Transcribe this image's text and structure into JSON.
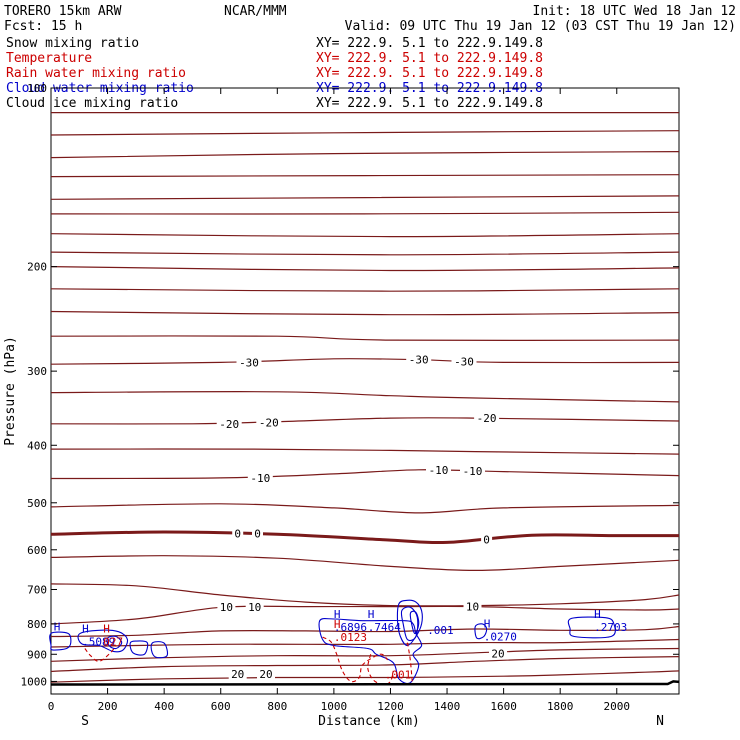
{
  "header": {
    "model": "TORERO  15km ARW",
    "org": "NCAR/MMM",
    "init": "Init: 18 UTC Wed 18 Jan 12",
    "fcst": "Fcst:   15 h",
    "valid": "Valid: 09 UTC Thu 19 Jan 12 (03 CST Thu 19 Jan 12)"
  },
  "fields": [
    {
      "name": "Snow mixing ratio",
      "xy": "XY= 222.9.  5.1 to 222.9.149.8",
      "color": "#000000"
    },
    {
      "name": "Temperature",
      "xy": "XY= 222.9.  5.1 to 222.9.149.8",
      "color": "#cc0000"
    },
    {
      "name": "Rain water mixing ratio",
      "xy": "XY= 222.9.  5.1 to 222.9.149.8",
      "color": "#cc0000"
    },
    {
      "name": "Cloud water mixing ratio",
      "xy": "XY= 222.9.  5.1 to 222.9.149.8",
      "color": "#0000cc"
    },
    {
      "name": "Cloud ice mixing ratio",
      "xy": "XY= 222.9.  5.1 to 222.9.149.8",
      "color": "#000000"
    }
  ],
  "chart_data": {
    "type": "line",
    "ylabel": "Pressure (hPa)",
    "xlabel": "Distance (km)",
    "xlim": [
      0,
      2220
    ],
    "ylim": [
      1050,
      100
    ],
    "ylog": true,
    "x_ticks": [
      0,
      200,
      400,
      600,
      800,
      1000,
      1200,
      1400,
      1600,
      1800,
      2000
    ],
    "y_ticks": [
      100,
      200,
      300,
      400,
      500,
      600,
      700,
      800,
      900,
      1000
    ],
    "end_labels": {
      "left": "S",
      "right": "N"
    },
    "colors": {
      "temperature": "#7a1a1a",
      "rain": "#cc0000",
      "cloud": "#0000cc",
      "ground": "#000000"
    },
    "isotherms": [
      {
        "level": -60,
        "points": [
          [
            0,
            110
          ],
          [
            2220,
            110
          ]
        ]
      },
      {
        "level": -58,
        "points": [
          [
            0,
            120
          ],
          [
            1000,
            119
          ],
          [
            2220,
            118
          ]
        ]
      },
      {
        "level": -56,
        "points": [
          [
            0,
            131
          ],
          [
            1000,
            129
          ],
          [
            2220,
            128
          ]
        ]
      },
      {
        "level": -54,
        "points": [
          [
            0,
            141
          ],
          [
            2220,
            140
          ]
        ]
      },
      {
        "level": -52,
        "points": [
          [
            0,
            154
          ],
          [
            2220,
            152
          ]
        ]
      },
      {
        "level": -50,
        "points": [
          [
            0,
            163
          ],
          [
            1100,
            163
          ],
          [
            2220,
            162
          ]
        ]
      },
      {
        "level": -48,
        "points": [
          [
            0,
            176
          ],
          [
            1200,
            178
          ],
          [
            2220,
            176
          ]
        ]
      },
      {
        "level": -46,
        "points": [
          [
            0,
            189
          ],
          [
            1200,
            191
          ],
          [
            2220,
            189
          ]
        ]
      },
      {
        "level": -44,
        "points": [
          [
            0,
            200
          ],
          [
            1200,
            203
          ],
          [
            2220,
            201
          ]
        ]
      },
      {
        "level": -42,
        "points": [
          [
            0,
            218
          ],
          [
            1200,
            220
          ],
          [
            2220,
            218
          ]
        ]
      },
      {
        "level": -40,
        "points": [
          [
            0,
            238
          ],
          [
            1200,
            241
          ],
          [
            2220,
            239
          ]
        ]
      },
      {
        "level": -36,
        "points": [
          [
            0,
            262
          ],
          [
            800,
            262
          ],
          [
            1200,
            266
          ],
          [
            2220,
            266
          ]
        ]
      },
      {
        "level": -30,
        "points": [
          [
            0,
            292
          ],
          [
            600,
            290
          ],
          [
            1000,
            286
          ],
          [
            1300,
            287
          ],
          [
            1600,
            290
          ],
          [
            2220,
            290
          ]
        ]
      },
      {
        "level": -26,
        "points": [
          [
            0,
            326
          ],
          [
            800,
            325
          ],
          [
            1200,
            330
          ],
          [
            1500,
            333
          ],
          [
            2220,
            338
          ]
        ]
      },
      {
        "level": -20,
        "points": [
          [
            0,
            368
          ],
          [
            500,
            368
          ],
          [
            800,
            365
          ],
          [
            1200,
            360
          ],
          [
            1500,
            360
          ],
          [
            2220,
            364
          ]
        ]
      },
      {
        "level": -16,
        "points": [
          [
            0,
            406
          ],
          [
            700,
            406
          ],
          [
            1200,
            408
          ],
          [
            1500,
            410
          ],
          [
            2220,
            414
          ]
        ]
      },
      {
        "level": -10,
        "points": [
          [
            0,
            455
          ],
          [
            600,
            454
          ],
          [
            1000,
            447
          ],
          [
            1300,
            440
          ],
          [
            1600,
            443
          ],
          [
            2220,
            450
          ]
        ]
      },
      {
        "level": -6,
        "points": [
          [
            0,
            508
          ],
          [
            600,
            502
          ],
          [
            1000,
            510
          ],
          [
            1300,
            520
          ],
          [
            1600,
            510
          ],
          [
            2220,
            505
          ]
        ]
      },
      {
        "level": 0,
        "points": [
          [
            0,
            565
          ],
          [
            400,
            560
          ],
          [
            800,
            565
          ],
          [
            1200,
            578
          ],
          [
            1400,
            583
          ],
          [
            1700,
            567
          ],
          [
            2000,
            568
          ],
          [
            2220,
            568
          ]
        ]
      },
      {
        "level": 4,
        "points": [
          [
            0,
            618
          ],
          [
            400,
            614
          ],
          [
            800,
            620
          ],
          [
            1200,
            640
          ],
          [
            1500,
            650
          ],
          [
            1800,
            640
          ],
          [
            2220,
            625
          ]
        ]
      },
      {
        "level": 8,
        "points": [
          [
            0,
            685
          ],
          [
            300,
            690
          ],
          [
            600,
            715
          ],
          [
            900,
            735
          ],
          [
            1200,
            745
          ],
          [
            1500,
            745
          ],
          [
            1800,
            740
          ],
          [
            2100,
            728
          ],
          [
            2220,
            715
          ]
        ]
      },
      {
        "level": 10,
        "points": [
          [
            0,
            800
          ],
          [
            300,
            785
          ],
          [
            600,
            750
          ],
          [
            900,
            748
          ],
          [
            1200,
            748
          ],
          [
            1500,
            748
          ],
          [
            1800,
            755
          ],
          [
            2100,
            758
          ],
          [
            2220,
            755
          ]
        ]
      },
      {
        "level": 14,
        "points": [
          [
            0,
            840
          ],
          [
            300,
            836
          ],
          [
            600,
            822
          ],
          [
            900,
            822
          ],
          [
            1200,
            824
          ],
          [
            1500,
            816
          ],
          [
            1800,
            820
          ],
          [
            2100,
            818
          ],
          [
            2220,
            808
          ]
        ]
      },
      {
        "level": 16,
        "points": [
          [
            0,
            875
          ],
          [
            300,
            870
          ],
          [
            600,
            866
          ],
          [
            900,
            866
          ],
          [
            1200,
            866
          ],
          [
            1500,
            860
          ],
          [
            1800,
            860
          ],
          [
            2220,
            850
          ]
        ]
      },
      {
        "level": 20,
        "points": [
          [
            0,
            925
          ],
          [
            400,
            912
          ],
          [
            800,
            905
          ],
          [
            1200,
            905
          ],
          [
            1500,
            895
          ],
          [
            1800,
            885
          ],
          [
            2220,
            880
          ]
        ]
      },
      {
        "level": 24,
        "points": [
          [
            0,
            962
          ],
          [
            400,
            944
          ],
          [
            800,
            940
          ],
          [
            1200,
            938
          ],
          [
            1500,
            925
          ],
          [
            1800,
            915
          ],
          [
            2220,
            908
          ]
        ]
      },
      {
        "level": 28,
        "points": [
          [
            0,
            1003
          ],
          [
            400,
            990
          ],
          [
            800,
            985
          ],
          [
            1200,
            985
          ],
          [
            1600,
            980
          ],
          [
            1800,
            975
          ],
          [
            2100,
            965
          ],
          [
            2220,
            960
          ]
        ]
      }
    ],
    "isotherm_labels": [
      {
        "text": "-30",
        "x": 700,
        "p": 290
      },
      {
        "text": "-30",
        "x": 1300,
        "p": 287
      },
      {
        "text": "-30",
        "x": 1460,
        "p": 289
      },
      {
        "text": "-20",
        "x": 630,
        "p": 368
      },
      {
        "text": "-20",
        "x": 770,
        "p": 366
      },
      {
        "text": "-20",
        "x": 1540,
        "p": 360
      },
      {
        "text": "-10",
        "x": 740,
        "p": 454
      },
      {
        "text": "-10",
        "x": 1370,
        "p": 440
      },
      {
        "text": "-10",
        "x": 1490,
        "p": 442
      },
      {
        "text": "0",
        "x": 660,
        "p": 563
      },
      {
        "text": "0",
        "x": 730,
        "p": 563
      },
      {
        "text": "0",
        "x": 1540,
        "p": 577
      },
      {
        "text": "10",
        "x": 620,
        "p": 749
      },
      {
        "text": "10",
        "x": 720,
        "p": 749
      },
      {
        "text": "10",
        "x": 1490,
        "p": 748
      },
      {
        "text": "20",
        "x": 1580,
        "p": 897
      },
      {
        "text": "20",
        "x": 660,
        "p": 972
      },
      {
        "text": "20",
        "x": 760,
        "p": 972
      }
    ],
    "ground": [
      [
        0,
        1012
      ],
      [
        2180,
        1010
      ],
      [
        2200,
        1000
      ],
      [
        2220,
        1002
      ]
    ],
    "cloud_contours": [
      [
        [
          0,
          830
        ],
        [
          60,
          830
        ],
        [
          70,
          860
        ],
        [
          55,
          880
        ],
        [
          5,
          885
        ],
        [
          0,
          870
        ]
      ],
      [
        [
          100,
          832
        ],
        [
          170,
          820
        ],
        [
          240,
          825
        ],
        [
          270,
          850
        ],
        [
          255,
          885
        ],
        [
          220,
          890
        ],
        [
          170,
          870
        ],
        [
          110,
          865
        ]
      ],
      [
        [
          200,
          845
        ],
        [
          230,
          840
        ],
        [
          250,
          860
        ],
        [
          230,
          880
        ],
        [
          205,
          870
        ]
      ],
      [
        [
          280,
          862
        ],
        [
          300,
          855
        ],
        [
          340,
          860
        ],
        [
          330,
          900
        ],
        [
          290,
          895
        ]
      ],
      [
        [
          360,
          860
        ],
        [
          400,
          862
        ],
        [
          410,
          905
        ],
        [
          370,
          910
        ],
        [
          355,
          885
        ]
      ],
      [
        [
          950,
          790
        ],
        [
          1000,
          785
        ],
        [
          1100,
          790
        ],
        [
          1250,
          790
        ],
        [
          1280,
          800
        ],
        [
          1290,
          830
        ],
        [
          1310,
          870
        ],
        [
          1280,
          900
        ],
        [
          1300,
          940
        ],
        [
          1270,
          1005
        ],
        [
          1230,
          990
        ],
        [
          1210,
          930
        ],
        [
          1150,
          900
        ],
        [
          1120,
          880
        ],
        [
          1000,
          870
        ],
        [
          960,
          850
        ]
      ],
      [
        [
          1230,
          740
        ],
        [
          1260,
          730
        ],
        [
          1290,
          735
        ],
        [
          1310,
          760
        ],
        [
          1310,
          800
        ],
        [
          1290,
          840
        ],
        [
          1260,
          870
        ],
        [
          1235,
          840
        ],
        [
          1225,
          790
        ]
      ],
      [
        [
          1240,
          760
        ],
        [
          1270,
          750
        ],
        [
          1295,
          780
        ],
        [
          1290,
          840
        ],
        [
          1260,
          850
        ],
        [
          1245,
          800
        ]
      ],
      [
        [
          1270,
          770
        ],
        [
          1290,
          765
        ],
        [
          1300,
          800
        ],
        [
          1285,
          830
        ]
      ],
      [
        [
          1500,
          808
        ],
        [
          1525,
          800
        ],
        [
          1540,
          815
        ],
        [
          1530,
          840
        ],
        [
          1505,
          845
        ]
      ],
      [
        [
          1840,
          783
        ],
        [
          1960,
          781
        ],
        [
          1990,
          800
        ],
        [
          1980,
          840
        ],
        [
          1850,
          840
        ],
        [
          1835,
          815
        ]
      ]
    ],
    "rain_contours": [
      [
        [
          960,
          842
        ],
        [
          990,
          858
        ],
        [
          1010,
          900
        ],
        [
          1030,
          960
        ],
        [
          1060,
          1000
        ],
        [
          1090,
          985
        ],
        [
          1100,
          940
        ],
        [
          1140,
          910
        ],
        [
          1170,
          900
        ],
        [
          1190,
          920
        ]
      ],
      [
        [
          1130,
          900
        ],
        [
          1120,
          950
        ],
        [
          1140,
          995
        ],
        [
          1175,
          1012
        ],
        [
          1200,
          1000
        ],
        [
          1210,
          960
        ]
      ],
      [
        [
          1260,
          860
        ],
        [
          1270,
          920
        ],
        [
          1278,
          1012
        ]
      ],
      [
        [
          120,
          880
        ],
        [
          140,
          905
        ],
        [
          170,
          925
        ],
        [
          210,
          895
        ],
        [
          230,
          870
        ]
      ]
    ],
    "max_labels": [
      {
        "mark": "H",
        "x": 10,
        "p": 840,
        "value": "",
        "color": "#0000cc"
      },
      {
        "mark": "H",
        "x": 110,
        "p": 846,
        "value": ".5089",
        "color": "#0000cc"
      },
      {
        "mark": "H",
        "x": 185,
        "p": 846,
        "value": "027",
        "color": "#cc0000"
      },
      {
        "mark": "H",
        "x": 1000,
        "p": 800,
        "value": ".6896",
        "color": "#0000cc"
      },
      {
        "mark": "H",
        "x": 1000,
        "p": 832,
        "value": ".0123",
        "color": "#cc0000"
      },
      {
        "mark": "H",
        "x": 1120,
        "p": 800,
        "value": ".7464",
        "color": "#0000cc"
      },
      {
        "mark": "",
        "x": 1330,
        "p": 810,
        "value": ".001",
        "color": "#0000cc"
      },
      {
        "mark": "H",
        "x": 1530,
        "p": 830,
        "value": ".0270",
        "color": "#0000cc"
      },
      {
        "mark": "H",
        "x": 1920,
        "p": 800,
        "value": ".2703",
        "color": "#0000cc"
      },
      {
        "mark": "",
        "x": 1180,
        "p": 962,
        "value": ".001",
        "color": "#cc0000"
      }
    ]
  }
}
